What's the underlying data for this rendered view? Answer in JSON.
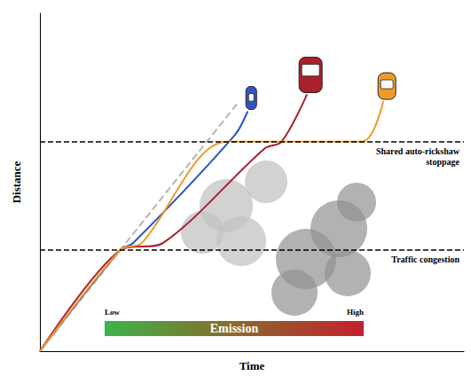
{
  "chart_data": {
    "type": "line",
    "x_label": "Time",
    "y_label": "Distance",
    "xlim": [
      0,
      100
    ],
    "ylim": [
      0,
      100
    ],
    "tick_labels": false,
    "grid": false,
    "series": [
      {
        "color": "#b5b5b5",
        "line_style": "dashed",
        "x": [
          0,
          19,
          47
        ],
        "values": [
          0,
          30,
          74
        ]
      },
      {
        "color": "#2f55c4",
        "line_style": "solid",
        "x": [
          0,
          19,
          22,
          46,
          49
        ],
        "values": [
          0,
          30,
          32,
          64,
          71
        ]
      },
      {
        "color": "#a8202b",
        "line_style": "solid",
        "x": [
          0,
          19,
          29,
          53,
          57,
          63
        ],
        "values": [
          0,
          30,
          32,
          60,
          62,
          76
        ]
      },
      {
        "color": "#f09a2a",
        "line_style": "solid",
        "x": [
          0,
          19,
          24,
          44,
          76,
          81
        ],
        "values": [
          0,
          30,
          32,
          62,
          62,
          74
        ]
      }
    ],
    "reference_lines": [
      {
        "y": 62,
        "label": "Shared auto-rickshaw stoppage",
        "color": "#000000",
        "line_style": "dashed"
      },
      {
        "y": 30,
        "label": "Traffic congestion",
        "color": "#000000",
        "line_style": "dashed"
      }
    ],
    "color_scale": {
      "title": "Emission",
      "low_label": "Low",
      "high_label": "High",
      "colors": [
        "#3cb44a",
        "#8a6a2a",
        "#c4202f"
      ]
    }
  }
}
